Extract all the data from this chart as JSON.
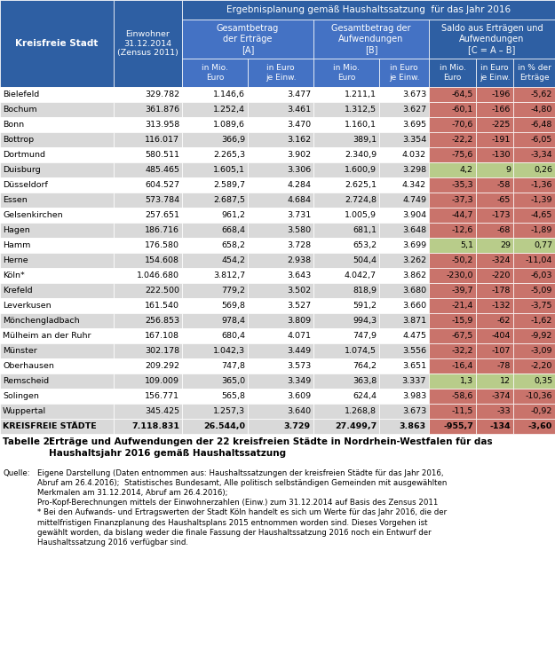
{
  "title_header": "Ergebnisplanung gemäß Haushaltssatzung  für das Jahr 2016",
  "col0_header": "Kreisfreie Stadt",
  "col1_header": "Einwohner\n31.12.2014\n(Zensus 2011)",
  "col_A_header": "Gesamtbetrag\nder Erträge\n[A]",
  "col_B_header": "Gesamtbetrag der\nAufwendungen\n[B]",
  "col_C_header": "Saldo aus Erträgen und\nAufwendungen\n[C = A – B]",
  "sub_headers": [
    "in Mio.\nEuro",
    "in Euro\nje Einw.",
    "in Mio.\nEuro",
    "in Euro\nje Einw.",
    "in Mio.\nEuro",
    "in Euro\nje Einw.",
    "in % der\nErträge"
  ],
  "cities": [
    "Bielefeld",
    "Bochum",
    "Bonn",
    "Bottrop",
    "Dortmund",
    "Duisburg",
    "Düsseldorf",
    "Essen",
    "Gelsenkirchen",
    "Hagen",
    "Hamm",
    "Herne",
    "Köln*",
    "Krefeld",
    "Leverkusen",
    "Mönchengladbach",
    "Mülheim an der Ruhr",
    "Münster",
    "Oberhausen",
    "Remscheid",
    "Solingen",
    "Wuppertal",
    "KREISFREIE STÄDTE"
  ],
  "einwohner": [
    "329.782",
    "361.876",
    "313.958",
    "116.017",
    "580.511",
    "485.465",
    "604.527",
    "573.784",
    "257.651",
    "186.716",
    "176.580",
    "154.608",
    "1.046.680",
    "222.500",
    "161.540",
    "256.853",
    "167.108",
    "302.178",
    "209.292",
    "109.009",
    "156.771",
    "345.425",
    "7.118.831"
  ],
  "ertrage_mio": [
    "1.146,6",
    "1.252,4",
    "1.089,6",
    "366,9",
    "2.265,3",
    "1.605,1",
    "2.589,7",
    "2.687,5",
    "961,2",
    "668,4",
    "658,2",
    "454,2",
    "3.812,7",
    "779,2",
    "569,8",
    "978,4",
    "680,4",
    "1.042,3",
    "747,8",
    "365,0",
    "565,8",
    "1.257,3",
    "26.544,0"
  ],
  "ertrage_euro": [
    "3.477",
    "3.461",
    "3.470",
    "3.162",
    "3.902",
    "3.306",
    "4.284",
    "4.684",
    "3.731",
    "3.580",
    "3.728",
    "2.938",
    "3.643",
    "3.502",
    "3.527",
    "3.809",
    "4.071",
    "3.449",
    "3.573",
    "3.349",
    "3.609",
    "3.640",
    "3.729"
  ],
  "aufwend_mio": [
    "1.211,1",
    "1.312,5",
    "1.160,1",
    "389,1",
    "2.340,9",
    "1.600,9",
    "2.625,1",
    "2.724,8",
    "1.005,9",
    "681,1",
    "653,2",
    "504,4",
    "4.042,7",
    "818,9",
    "591,2",
    "994,3",
    "747,9",
    "1.074,5",
    "764,2",
    "363,8",
    "624,4",
    "1.268,8",
    "27.499,7"
  ],
  "aufwend_euro": [
    "3.673",
    "3.627",
    "3.695",
    "3.354",
    "4.032",
    "3.298",
    "4.342",
    "4.749",
    "3.904",
    "3.648",
    "3.699",
    "3.262",
    "3.862",
    "3.680",
    "3.660",
    "3.871",
    "4.475",
    "3.556",
    "3.651",
    "3.337",
    "3.983",
    "3.673",
    "3.863"
  ],
  "saldo_mio": [
    "-64,5",
    "-60,1",
    "-70,6",
    "-22,2",
    "-75,6",
    "4,2",
    "-35,3",
    "-37,3",
    "-44,7",
    "-12,6",
    "5,1",
    "-50,2",
    "-230,0",
    "-39,7",
    "-21,4",
    "-15,9",
    "-67,5",
    "-32,2",
    "-16,4",
    "1,3",
    "-58,6",
    "-11,5",
    "-955,7"
  ],
  "saldo_euro": [
    "-196",
    "-166",
    "-225",
    "-191",
    "-130",
    "9",
    "-58",
    "-65",
    "-173",
    "-68",
    "29",
    "-324",
    "-220",
    "-178",
    "-132",
    "-62",
    "-404",
    "-107",
    "-78",
    "12",
    "-374",
    "-33",
    "-134"
  ],
  "saldo_pct": [
    "-5,62",
    "-4,80",
    "-6,48",
    "-6,05",
    "-3,34",
    "0,26",
    "-1,36",
    "-1,39",
    "-4,65",
    "-1,89",
    "0,77",
    "-11,04",
    "-6,03",
    "-5,09",
    "-3,75",
    "-1,62",
    "-9,92",
    "-3,09",
    "-2,20",
    "0,35",
    "-10,36",
    "-0,92",
    "-3,60"
  ],
  "saldo_positive": [
    false,
    false,
    false,
    false,
    false,
    true,
    false,
    false,
    false,
    false,
    true,
    false,
    false,
    false,
    false,
    false,
    false,
    false,
    false,
    true,
    false,
    false,
    false
  ],
  "header_bg": "#2E5FA3",
  "header_fg": "#FFFFFF",
  "subheader_bg": "#4472C4",
  "row_odd_bg": "#FFFFFF",
  "row_even_bg": "#D9D9D9",
  "saldo_neg_bg": "#C9736B",
  "saldo_pos_bg": "#B8CC8A",
  "table_label": "Tabelle 2:",
  "table_title": "Erträge und Aufwendungen der 22 kreisfreien Städte in Nordrhein-Westfalen für das\nHaushaltsjahr 2016 gemäß Haushaltssatzung",
  "source_label": "Quelle:",
  "source_text": "Eigene Darstellung (Daten entnommen aus: Haushaltssatzungen der kreisfreien Städte für das Jahr 2016,\nAbruf am 26.4.2016);  Statistisches Bundesamt, Alle politisch selbständigen Gemeinden mit ausgewählten\nMerkmalen am 31.12.2014, Abruf am 26.4.2016);\nPro-Kopf-Berechnungen mittels der Einwohnerzahlen (Einw.) zum 31.12.2014 auf Basis des Zensus 2011\n* Bei den Aufwands- und Ertragswerten der Stadt Köln handelt es sich um Werte für das Jahr 2016, die der\nmittelfristigen Finanzplanung des Haushaltsplans 2015 entnommen worden sind. Dieses Vorgehen ist\ngewählt worden, da bislang weder die finale Fassung der Haushaltssatzung 2016 noch ein Entwurf der\nHaushaltssatzung 2016 verfügbar sind."
}
